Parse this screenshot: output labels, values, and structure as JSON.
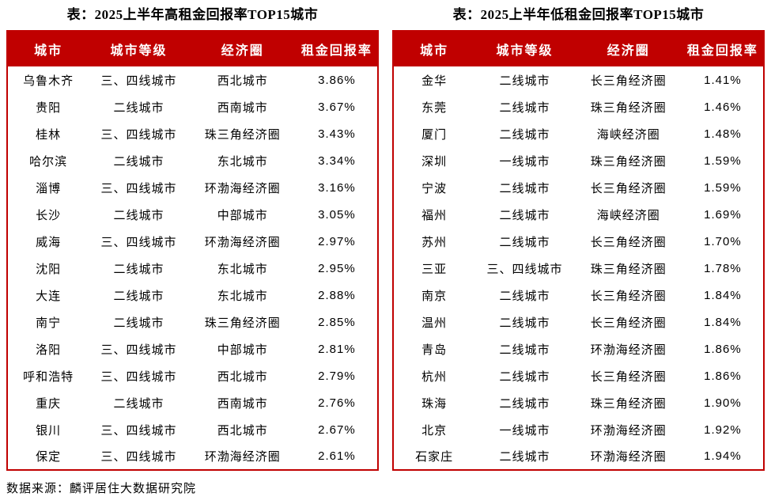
{
  "page": {
    "source_note": "数据来源：麟评居住大数据研究院"
  },
  "colors": {
    "header_bg": "#c00000",
    "header_text": "#ffffff",
    "table_border": "#c00000",
    "body_text": "#000000"
  },
  "tables": [
    {
      "title": "表：2025上半年高租金回报率TOP15城市",
      "headers": [
        "城市",
        "城市等级",
        "经济圈",
        "租金回报率"
      ],
      "rows": [
        {
          "city": "乌鲁木齐",
          "tier": "三、四线城市",
          "region": "西北城市",
          "yield": "3.86%"
        },
        {
          "city": "贵阳",
          "tier": "二线城市",
          "region": "西南城市",
          "yield": "3.67%"
        },
        {
          "city": "桂林",
          "tier": "三、四线城市",
          "region": "珠三角经济圈",
          "yield": "3.43%"
        },
        {
          "city": "哈尔滨",
          "tier": "二线城市",
          "region": "东北城市",
          "yield": "3.34%"
        },
        {
          "city": "淄博",
          "tier": "三、四线城市",
          "region": "环渤海经济圈",
          "yield": "3.16%"
        },
        {
          "city": "长沙",
          "tier": "二线城市",
          "region": "中部城市",
          "yield": "3.05%"
        },
        {
          "city": "威海",
          "tier": "三、四线城市",
          "region": "环渤海经济圈",
          "yield": "2.97%"
        },
        {
          "city": "沈阳",
          "tier": "二线城市",
          "region": "东北城市",
          "yield": "2.95%"
        },
        {
          "city": "大连",
          "tier": "二线城市",
          "region": "东北城市",
          "yield": "2.88%"
        },
        {
          "city": "南宁",
          "tier": "二线城市",
          "region": "珠三角经济圈",
          "yield": "2.85%"
        },
        {
          "city": "洛阳",
          "tier": "三、四线城市",
          "region": "中部城市",
          "yield": "2.81%"
        },
        {
          "city": "呼和浩特",
          "tier": "三、四线城市",
          "region": "西北城市",
          "yield": "2.79%"
        },
        {
          "city": "重庆",
          "tier": "二线城市",
          "region": "西南城市",
          "yield": "2.76%"
        },
        {
          "city": "银川",
          "tier": "三、四线城市",
          "region": "西北城市",
          "yield": "2.67%"
        },
        {
          "city": "保定",
          "tier": "三、四线城市",
          "region": "环渤海经济圈",
          "yield": "2.61%"
        }
      ]
    },
    {
      "title": "表：2025上半年低租金回报率TOP15城市",
      "headers": [
        "城市",
        "城市等级",
        "经济圈",
        "租金回报率"
      ],
      "rows": [
        {
          "city": "金华",
          "tier": "二线城市",
          "region": "长三角经济圈",
          "yield": "1.41%"
        },
        {
          "city": "东莞",
          "tier": "二线城市",
          "region": "珠三角经济圈",
          "yield": "1.46%"
        },
        {
          "city": "厦门",
          "tier": "二线城市",
          "region": "海峡经济圈",
          "yield": "1.48%"
        },
        {
          "city": "深圳",
          "tier": "一线城市",
          "region": "珠三角经济圈",
          "yield": "1.59%"
        },
        {
          "city": "宁波",
          "tier": "二线城市",
          "region": "长三角经济圈",
          "yield": "1.59%"
        },
        {
          "city": "福州",
          "tier": "二线城市",
          "region": "海峡经济圈",
          "yield": "1.69%"
        },
        {
          "city": "苏州",
          "tier": "二线城市",
          "region": "长三角经济圈",
          "yield": "1.70%"
        },
        {
          "city": "三亚",
          "tier": "三、四线城市",
          "region": "珠三角经济圈",
          "yield": "1.78%"
        },
        {
          "city": "南京",
          "tier": "二线城市",
          "region": "长三角经济圈",
          "yield": "1.84%"
        },
        {
          "city": "温州",
          "tier": "二线城市",
          "region": "长三角经济圈",
          "yield": "1.84%"
        },
        {
          "city": "青岛",
          "tier": "二线城市",
          "region": "环渤海经济圈",
          "yield": "1.86%"
        },
        {
          "city": "杭州",
          "tier": "二线城市",
          "region": "长三角经济圈",
          "yield": "1.86%"
        },
        {
          "city": "珠海",
          "tier": "二线城市",
          "region": "珠三角经济圈",
          "yield": "1.90%"
        },
        {
          "city": "北京",
          "tier": "一线城市",
          "region": "环渤海经济圈",
          "yield": "1.92%"
        },
        {
          "city": "石家庄",
          "tier": "二线城市",
          "region": "环渤海经济圈",
          "yield": "1.94%"
        }
      ]
    }
  ]
}
